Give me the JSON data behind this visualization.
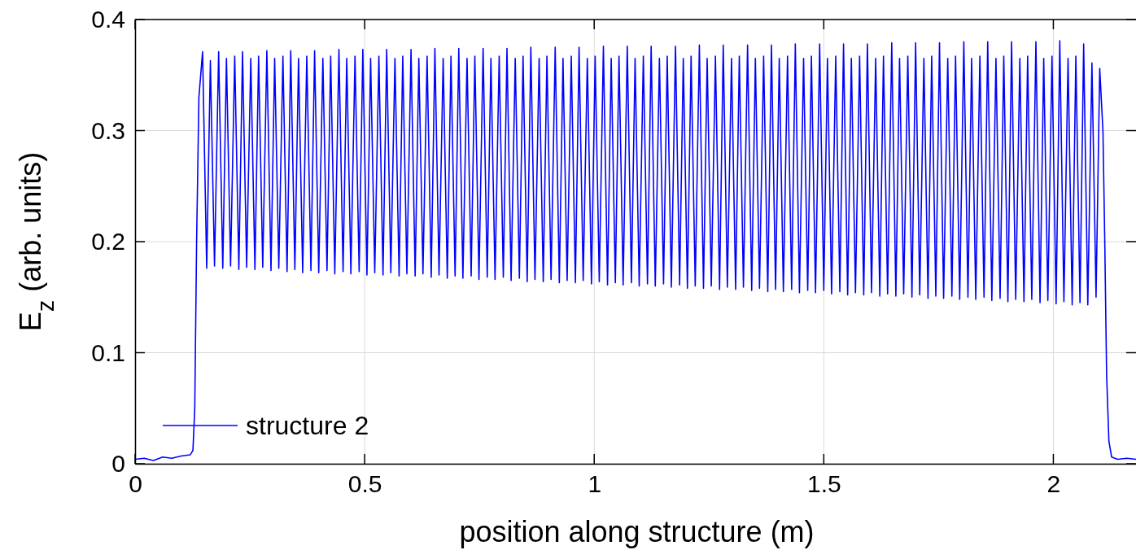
{
  "chart_data": {
    "type": "line",
    "xlabel": "position along structure (m)",
    "ylabel": "E$_{z}$ (arb. units)",
    "xlim": [
      0,
      2.18
    ],
    "ylim": [
      0,
      0.4
    ],
    "xticks": [
      0,
      0.5,
      1,
      1.5,
      2
    ],
    "yticks": [
      0,
      0.1,
      0.2,
      0.3,
      0.4
    ],
    "grid": true,
    "legend": "bottom left",
    "line_style": "solid",
    "marker": "none",
    "series": [
      {
        "name": "structure 2",
        "color": "#0000ff",
        "x": [
          0,
          0.02,
          0.04,
          0.06,
          0.08,
          0.1,
          0.12,
          0.126,
          0.13,
          0.134,
          0.139,
          0.147,
          0.156,
          0.164,
          0.173,
          0.182,
          0.191,
          0.199,
          0.208,
          0.217,
          0.226,
          0.234,
          0.243,
          0.252,
          0.261,
          0.269,
          0.278,
          0.287,
          0.296,
          0.304,
          0.313,
          0.322,
          0.331,
          0.339,
          0.348,
          0.356,
          0.365,
          0.374,
          0.383,
          0.391,
          0.4,
          0.409,
          0.418,
          0.426,
          0.435,
          0.444,
          0.453,
          0.461,
          0.47,
          0.479,
          0.488,
          0.496,
          0.505,
          0.513,
          0.522,
          0.531,
          0.54,
          0.548,
          0.557,
          0.566,
          0.575,
          0.583,
          0.592,
          0.601,
          0.61,
          0.618,
          0.627,
          0.636,
          0.645,
          0.653,
          0.662,
          0.671,
          0.68,
          0.688,
          0.697,
          0.705,
          0.714,
          0.723,
          0.732,
          0.74,
          0.749,
          0.758,
          0.767,
          0.775,
          0.784,
          0.793,
          0.802,
          0.81,
          0.819,
          0.828,
          0.837,
          0.845,
          0.854,
          0.862,
          0.871,
          0.88,
          0.889,
          0.897,
          0.906,
          0.915,
          0.924,
          0.932,
          0.941,
          0.95,
          0.959,
          0.967,
          0.976,
          0.985,
          0.994,
          1.002,
          1.011,
          1.02,
          1.029,
          1.037,
          1.046,
          1.054,
          1.063,
          1.072,
          1.081,
          1.089,
          1.098,
          1.107,
          1.116,
          1.124,
          1.133,
          1.142,
          1.151,
          1.159,
          1.168,
          1.177,
          1.186,
          1.194,
          1.203,
          1.211,
          1.22,
          1.229,
          1.238,
          1.246,
          1.255,
          1.264,
          1.273,
          1.281,
          1.29,
          1.299,
          1.308,
          1.316,
          1.325,
          1.334,
          1.343,
          1.351,
          1.36,
          1.369,
          1.378,
          1.386,
          1.395,
          1.403,
          1.412,
          1.421,
          1.43,
          1.438,
          1.447,
          1.456,
          1.465,
          1.473,
          1.482,
          1.491,
          1.5,
          1.508,
          1.517,
          1.526,
          1.535,
          1.543,
          1.552,
          1.56,
          1.569,
          1.578,
          1.587,
          1.595,
          1.604,
          1.613,
          1.622,
          1.63,
          1.639,
          1.648,
          1.657,
          1.665,
          1.674,
          1.683,
          1.692,
          1.7,
          1.709,
          1.718,
          1.727,
          1.735,
          1.744,
          1.752,
          1.761,
          1.77,
          1.779,
          1.787,
          1.796,
          1.805,
          1.814,
          1.822,
          1.831,
          1.84,
          1.849,
          1.857,
          1.866,
          1.875,
          1.884,
          1.892,
          1.901,
          1.909,
          1.918,
          1.927,
          1.936,
          1.944,
          1.953,
          1.962,
          1.971,
          1.979,
          1.988,
          1.997,
          2.006,
          2.014,
          2.023,
          2.032,
          2.041,
          2.049,
          2.058,
          2.066,
          2.075,
          2.084,
          2.093,
          2.101,
          2.108,
          2.112,
          2.116,
          2.121,
          2.127,
          2.14,
          2.16,
          2.18
        ],
        "values": [
          0.004,
          0.005,
          0.003,
          0.006,
          0.005,
          0.007,
          0.008,
          0.012,
          0.05,
          0.2,
          0.33,
          0.371,
          0.176,
          0.363,
          0.178,
          0.371,
          0.176,
          0.365,
          0.178,
          0.367,
          0.175,
          0.371,
          0.177,
          0.365,
          0.175,
          0.367,
          0.177,
          0.372,
          0.174,
          0.365,
          0.176,
          0.367,
          0.173,
          0.372,
          0.175,
          0.365,
          0.172,
          0.367,
          0.174,
          0.372,
          0.172,
          0.365,
          0.174,
          0.367,
          0.171,
          0.373,
          0.173,
          0.365,
          0.171,
          0.367,
          0.173,
          0.373,
          0.17,
          0.365,
          0.172,
          0.367,
          0.17,
          0.373,
          0.172,
          0.365,
          0.169,
          0.367,
          0.171,
          0.373,
          0.169,
          0.365,
          0.171,
          0.367,
          0.168,
          0.374,
          0.17,
          0.365,
          0.167,
          0.367,
          0.169,
          0.374,
          0.167,
          0.365,
          0.169,
          0.367,
          0.166,
          0.374,
          0.168,
          0.365,
          0.166,
          0.367,
          0.168,
          0.374,
          0.165,
          0.365,
          0.167,
          0.367,
          0.164,
          0.375,
          0.166,
          0.365,
          0.164,
          0.367,
          0.166,
          0.375,
          0.163,
          0.365,
          0.165,
          0.367,
          0.163,
          0.375,
          0.165,
          0.365,
          0.162,
          0.367,
          0.164,
          0.376,
          0.161,
          0.365,
          0.163,
          0.367,
          0.161,
          0.376,
          0.163,
          0.365,
          0.16,
          0.367,
          0.162,
          0.376,
          0.16,
          0.365,
          0.162,
          0.367,
          0.159,
          0.376,
          0.161,
          0.365,
          0.158,
          0.367,
          0.16,
          0.377,
          0.158,
          0.365,
          0.16,
          0.367,
          0.157,
          0.377,
          0.159,
          0.365,
          0.157,
          0.367,
          0.159,
          0.377,
          0.156,
          0.365,
          0.158,
          0.367,
          0.155,
          0.377,
          0.157,
          0.365,
          0.155,
          0.367,
          0.157,
          0.378,
          0.154,
          0.365,
          0.156,
          0.367,
          0.154,
          0.378,
          0.156,
          0.365,
          0.153,
          0.367,
          0.155,
          0.378,
          0.152,
          0.365,
          0.154,
          0.367,
          0.152,
          0.378,
          0.154,
          0.365,
          0.151,
          0.367,
          0.153,
          0.379,
          0.151,
          0.365,
          0.153,
          0.367,
          0.15,
          0.379,
          0.152,
          0.365,
          0.149,
          0.367,
          0.151,
          0.379,
          0.149,
          0.365,
          0.151,
          0.367,
          0.148,
          0.38,
          0.15,
          0.365,
          0.148,
          0.367,
          0.15,
          0.38,
          0.147,
          0.365,
          0.149,
          0.367,
          0.146,
          0.38,
          0.148,
          0.365,
          0.146,
          0.367,
          0.148,
          0.38,
          0.145,
          0.365,
          0.147,
          0.367,
          0.144,
          0.381,
          0.146,
          0.365,
          0.143,
          0.367,
          0.145,
          0.378,
          0.143,
          0.361,
          0.15,
          0.356,
          0.3,
          0.2,
          0.08,
          0.02,
          0.006,
          0.004,
          0.005,
          0.004
        ]
      }
    ]
  }
}
